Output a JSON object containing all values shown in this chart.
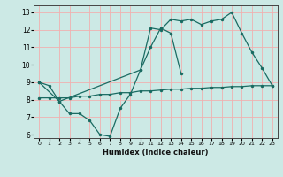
{
  "xlabel": "Humidex (Indice chaleur)",
  "background_color": "#cce9e5",
  "grid_color": "#f0b0b0",
  "line_color": "#1a6b62",
  "xlim": [
    -0.5,
    23.5
  ],
  "ylim": [
    5.8,
    13.4
  ],
  "yticks": [
    6,
    7,
    8,
    9,
    10,
    11,
    12,
    13
  ],
  "xticks": [
    0,
    1,
    2,
    3,
    4,
    5,
    6,
    7,
    8,
    9,
    10,
    11,
    12,
    13,
    14,
    15,
    16,
    17,
    18,
    19,
    20,
    21,
    22,
    23
  ],
  "line1_x": [
    0,
    1,
    2,
    3,
    4,
    5,
    6,
    7,
    8,
    9,
    10,
    11,
    12,
    13,
    14
  ],
  "line1_y": [
    9.0,
    8.8,
    7.9,
    7.2,
    7.2,
    6.8,
    6.0,
    5.9,
    7.5,
    8.3,
    9.7,
    11.0,
    12.1,
    11.8,
    9.5
  ],
  "line2_x": [
    0,
    1,
    2,
    3,
    4,
    5,
    6,
    7,
    8,
    9,
    10,
    11,
    12,
    13,
    14,
    15,
    16,
    17,
    18,
    19,
    20,
    21,
    22,
    23
  ],
  "line2_y": [
    8.1,
    8.1,
    8.1,
    8.1,
    8.2,
    8.2,
    8.3,
    8.3,
    8.4,
    8.4,
    8.5,
    8.5,
    8.55,
    8.6,
    8.6,
    8.65,
    8.65,
    8.7,
    8.7,
    8.75,
    8.75,
    8.8,
    8.8,
    8.8
  ],
  "line3_x": [
    0,
    2,
    10,
    11,
    12,
    13,
    14,
    15,
    16,
    17,
    18,
    19,
    20,
    21,
    22,
    23
  ],
  "line3_y": [
    9.0,
    7.9,
    9.7,
    12.1,
    12.0,
    12.6,
    12.5,
    12.6,
    12.3,
    12.5,
    12.6,
    13.0,
    11.8,
    10.7,
    9.8,
    8.8
  ]
}
